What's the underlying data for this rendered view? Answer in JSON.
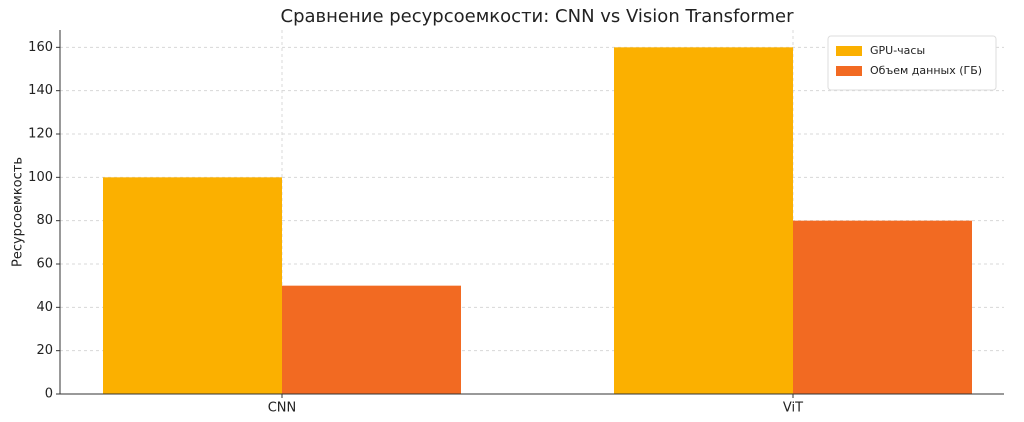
{
  "chart_data": {
    "type": "bar",
    "title": "Сравнение ресурсоемкости: CNN vs Vision Transformer",
    "y_label": "Ресурсоемкость",
    "categories": [
      "CNN",
      "ViT"
    ],
    "series": [
      {
        "name": "GPU-часы",
        "color": "#fbb000",
        "values": [
          100,
          160
        ]
      },
      {
        "name": "Объем данных (ГБ)",
        "color": "#f26a22",
        "values": [
          50,
          80
        ]
      }
    ],
    "ylim": [
      0,
      168
    ],
    "yticks": [
      0,
      20,
      40,
      60,
      80,
      100,
      120,
      140,
      160
    ],
    "grid": true,
    "legend": "upper right"
  }
}
